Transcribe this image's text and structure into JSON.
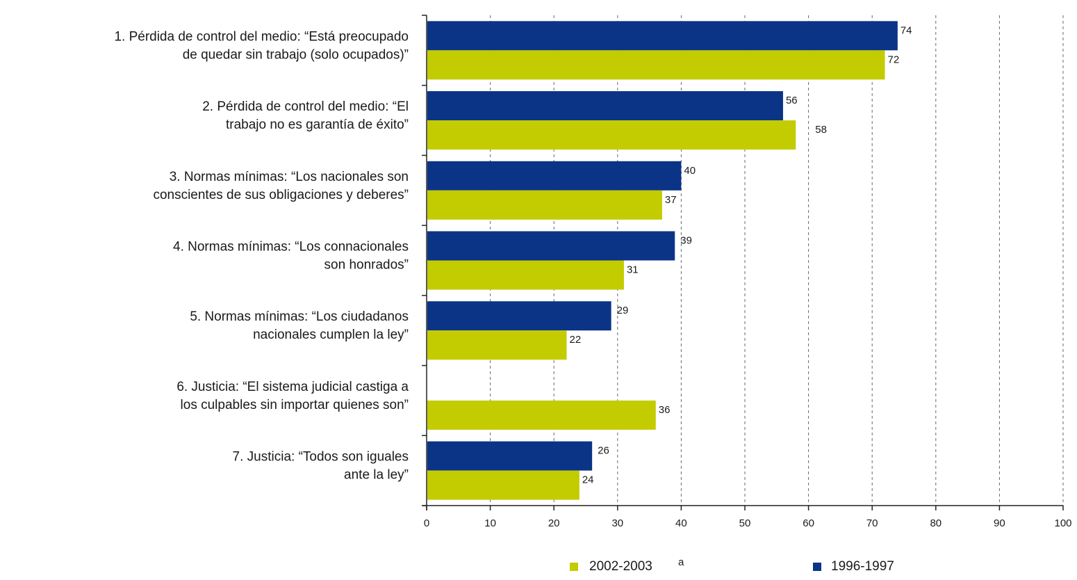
{
  "chart_data": {
    "type": "bar",
    "orientation": "horizontal",
    "categories": [
      [
        "1. Pérdida de control del medio: “Está preocupado",
        "de quedar sin trabajo (solo ocupados)”"
      ],
      [
        "2. Pérdida de control del medio: “El",
        "trabajo no es garantía de éxito”"
      ],
      [
        "3. Normas mínimas: “Los nacionales son",
        "conscientes de sus obligaciones y deberes”"
      ],
      [
        "4. Normas mínimas: “Los connacionales",
        "son honrados”"
      ],
      [
        "5. Normas mínimas: “Los ciudadanos",
        "nacionales cumplen la ley”"
      ],
      [
        "6. Justicia: “El sistema judicial castiga a",
        "los culpables sin importar quienes son”"
      ],
      [
        "7. Justicia: “Todos son iguales",
        "ante la ley”"
      ]
    ],
    "series": [
      {
        "name": "1996-1997",
        "color": "#0b3487",
        "values": [
          74,
          56,
          40,
          39,
          29,
          null,
          26
        ],
        "labels": [
          "74",
          "56",
          "40",
          "39",
          "29",
          "",
          "26"
        ]
      },
      {
        "name": "2002-2003",
        "name_superscript": "a",
        "color": "#c3cc00",
        "values": [
          72,
          58,
          37,
          31,
          22,
          36,
          24
        ],
        "labels": [
          "72",
          "58",
          "37",
          "31",
          "22",
          "36",
          "24"
        ]
      }
    ],
    "xlim": [
      0,
      100
    ],
    "xticks": [
      "0",
      "10",
      "20",
      "30",
      "40",
      "50",
      "60",
      "70",
      "80",
      "90",
      "100"
    ],
    "grid": "vertical dashed",
    "legend": {
      "placement": "bottom",
      "order": [
        "2002-2003",
        "1996-1997"
      ]
    }
  }
}
